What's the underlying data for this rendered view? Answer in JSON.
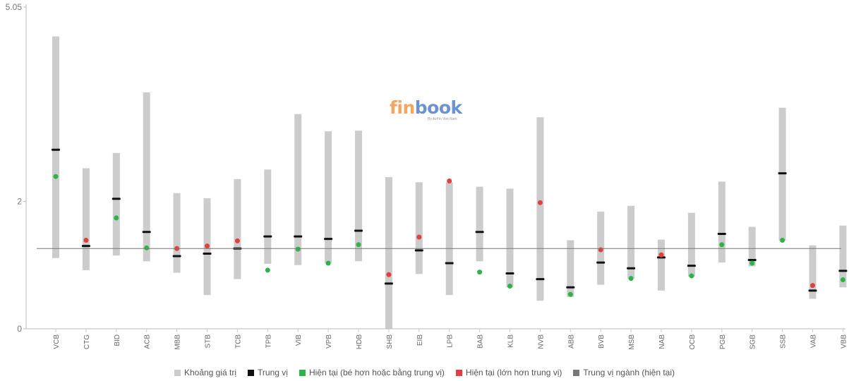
{
  "logo": {
    "text_a": "fin",
    "text_b": "book",
    "tagline": "By AzFin Viet Nam"
  },
  "legend": [
    {
      "label": "Khoảng giá trị",
      "color": "#cccccc"
    },
    {
      "label": "Trung vị",
      "color": "#111111"
    },
    {
      "label": "Hiện tại (bé hơn hoặc bằng trung vị)",
      "color": "#2db34a"
    },
    {
      "label": "Hiện tại (lớn hơn trung vị)",
      "color": "#e04040"
    },
    {
      "label": "Trung vị ngành (hiện tại)",
      "color": "#777777"
    }
  ],
  "chart_data": {
    "type": "range",
    "ylim": [
      0,
      5.05
    ],
    "yticks": [
      "0",
      "2",
      "5.05"
    ],
    "industry_median": 1.26,
    "colors": {
      "range": "#cccccc",
      "median": "#111111",
      "below": "#2db34a",
      "above": "#e04040",
      "industry": "#777777"
    },
    "categories": [
      "VCB",
      "CTG",
      "BID",
      "ACB",
      "MBB",
      "STB",
      "TCB",
      "TPB",
      "VIB",
      "VPB",
      "HDB",
      "SHB",
      "EIB",
      "LPB",
      "BAB",
      "KLB",
      "NVB",
      "ABB",
      "BVB",
      "MSB",
      "NAB",
      "OCB",
      "PGB",
      "SGB",
      "SSB",
      "VAB",
      "VBB"
    ],
    "items": [
      {
        "name": "VCB",
        "min": 1.11,
        "max": 4.59,
        "median": 2.81,
        "current": 2.39
      },
      {
        "name": "CTG",
        "min": 0.92,
        "max": 2.52,
        "median": 1.3,
        "current": 1.39
      },
      {
        "name": "BID",
        "min": 1.15,
        "max": 2.76,
        "median": 2.04,
        "current": 1.74
      },
      {
        "name": "ACB",
        "min": 1.06,
        "max": 3.71,
        "median": 1.52,
        "current": 1.27
      },
      {
        "name": "MBB",
        "min": 0.88,
        "max": 2.13,
        "median": 1.14,
        "current": 1.26
      },
      {
        "name": "STB",
        "min": 0.53,
        "max": 2.05,
        "median": 1.18,
        "current": 1.3
      },
      {
        "name": "TCB",
        "min": 0.78,
        "max": 2.35,
        "median": 1.26,
        "current": 1.38
      },
      {
        "name": "TPB",
        "min": 1.02,
        "max": 2.5,
        "median": 1.45,
        "current": 0.92
      },
      {
        "name": "VIB",
        "min": 1.0,
        "max": 3.37,
        "median": 1.45,
        "current": 1.25
      },
      {
        "name": "VPB",
        "min": 1.03,
        "max": 3.1,
        "median": 1.41,
        "current": 1.03
      },
      {
        "name": "HDB",
        "min": 1.06,
        "max": 3.11,
        "median": 1.54,
        "current": 1.32
      },
      {
        "name": "SHB",
        "min": 0.0,
        "max": 2.38,
        "median": 0.71,
        "current": 0.85
      },
      {
        "name": "EIB",
        "min": 0.86,
        "max": 2.3,
        "median": 1.23,
        "current": 1.44
      },
      {
        "name": "LPB",
        "min": 0.53,
        "max": 2.3,
        "median": 1.03,
        "current": 2.32
      },
      {
        "name": "BAB",
        "min": 1.06,
        "max": 2.23,
        "median": 1.52,
        "current": 0.89
      },
      {
        "name": "KLB",
        "min": 0.65,
        "max": 2.2,
        "median": 0.87,
        "current": 0.67
      },
      {
        "name": "NVB",
        "min": 0.44,
        "max": 3.32,
        "median": 0.78,
        "current": 1.98
      },
      {
        "name": "ABB",
        "min": 0.5,
        "max": 1.39,
        "median": 0.65,
        "current": 0.54
      },
      {
        "name": "BVB",
        "min": 0.69,
        "max": 1.84,
        "median": 1.04,
        "current": 1.24
      },
      {
        "name": "MSB",
        "min": 0.79,
        "max": 1.93,
        "median": 0.95,
        "current": 0.79
      },
      {
        "name": "NAB",
        "min": 0.6,
        "max": 1.4,
        "median": 1.12,
        "current": 1.16
      },
      {
        "name": "OCB",
        "min": 0.82,
        "max": 1.82,
        "median": 0.99,
        "current": 0.83
      },
      {
        "name": "PGB",
        "min": 1.04,
        "max": 2.31,
        "median": 1.49,
        "current": 1.32
      },
      {
        "name": "SGB",
        "min": 0.98,
        "max": 1.6,
        "median": 1.08,
        "current": 1.03
      },
      {
        "name": "SSB",
        "min": 1.38,
        "max": 3.47,
        "median": 2.44,
        "current": 1.39
      },
      {
        "name": "VAB",
        "min": 0.47,
        "max": 1.31,
        "median": 0.6,
        "current": 0.68
      },
      {
        "name": "VBB",
        "min": 0.65,
        "max": 1.62,
        "median": 0.91,
        "current": 0.77
      }
    ]
  }
}
